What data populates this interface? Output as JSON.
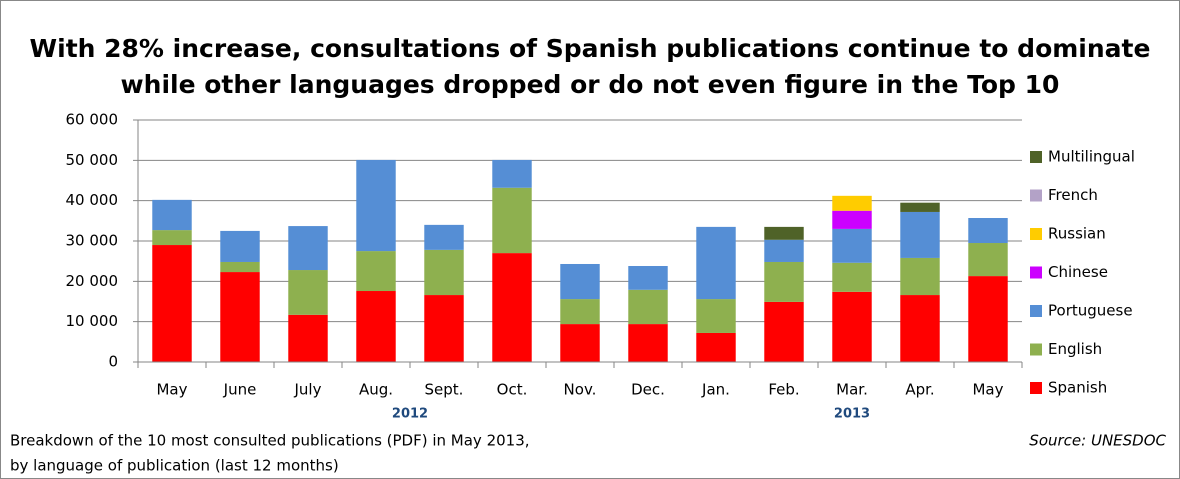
{
  "chart_data": {
    "type": "bar",
    "stacked": true,
    "title": [
      "With 28% increase, consultations of Spanish publications continue to dominate",
      "while other languages dropped or do not even figure in the Top 10"
    ],
    "categories": [
      "May",
      "June",
      "July",
      "Aug.",
      "Sept.",
      "Oct.",
      "Nov.",
      "Dec.",
      "Jan.",
      "Feb.",
      "Mar.",
      "Apr.",
      "May"
    ],
    "year_labels": [
      {
        "label": "2012",
        "category_index": 3.5
      },
      {
        "label": "2013",
        "category_index": 10
      }
    ],
    "series": [
      {
        "name": "Spanish",
        "color": "#ff0000",
        "values": [
          29000,
          22300,
          11700,
          17600,
          16600,
          27000,
          9400,
          9400,
          7200,
          14900,
          17400,
          16600,
          21300
        ]
      },
      {
        "name": "English",
        "color": "#8eb04f",
        "values": [
          3700,
          2500,
          11100,
          9900,
          11200,
          16200,
          6200,
          8500,
          8400,
          9900,
          7200,
          9200,
          8200
        ]
      },
      {
        "name": "Portuguese",
        "color": "#558ed5",
        "values": [
          7500,
          7700,
          10900,
          22600,
          6200,
          6900,
          8700,
          5900,
          17900,
          5500,
          8400,
          11400,
          6200
        ]
      },
      {
        "name": "Chinese",
        "color": "#cc00ff",
        "values": [
          0,
          0,
          0,
          0,
          0,
          0,
          0,
          0,
          0,
          0,
          4500,
          0,
          0
        ]
      },
      {
        "name": "Russian",
        "color": "#ffcc00",
        "values": [
          0,
          0,
          0,
          0,
          0,
          0,
          0,
          0,
          0,
          0,
          3700,
          0,
          0
        ]
      },
      {
        "name": "French",
        "color": "#b3a2c7",
        "values": [
          0,
          0,
          0,
          0,
          0,
          0,
          0,
          0,
          0,
          0,
          0,
          0,
          0
        ]
      },
      {
        "name": "Multilingual",
        "color": "#4f6228",
        "values": [
          0,
          0,
          0,
          0,
          0,
          0,
          0,
          0,
          0,
          3200,
          0,
          2300,
          0
        ]
      }
    ],
    "ylim": [
      0,
      60000
    ],
    "yticks": [
      0,
      {
        "value": 10000,
        "label": "10 000"
      },
      {
        "value": 20000,
        "label": "20 000"
      },
      {
        "value": 30000,
        "label": "30 000"
      },
      {
        "value": 40000,
        "label": "40 000"
      },
      {
        "value": 50000,
        "label": "50 000"
      },
      {
        "value": 60000,
        "label": "60 000"
      }
    ],
    "grid": true,
    "legend": "right",
    "note": [
      "Breakdown of the 10 most consulted publications  (PDF) in  May 2013,",
      "by language of publication (last 12 months)"
    ],
    "source": "Source: UNESDOC"
  }
}
